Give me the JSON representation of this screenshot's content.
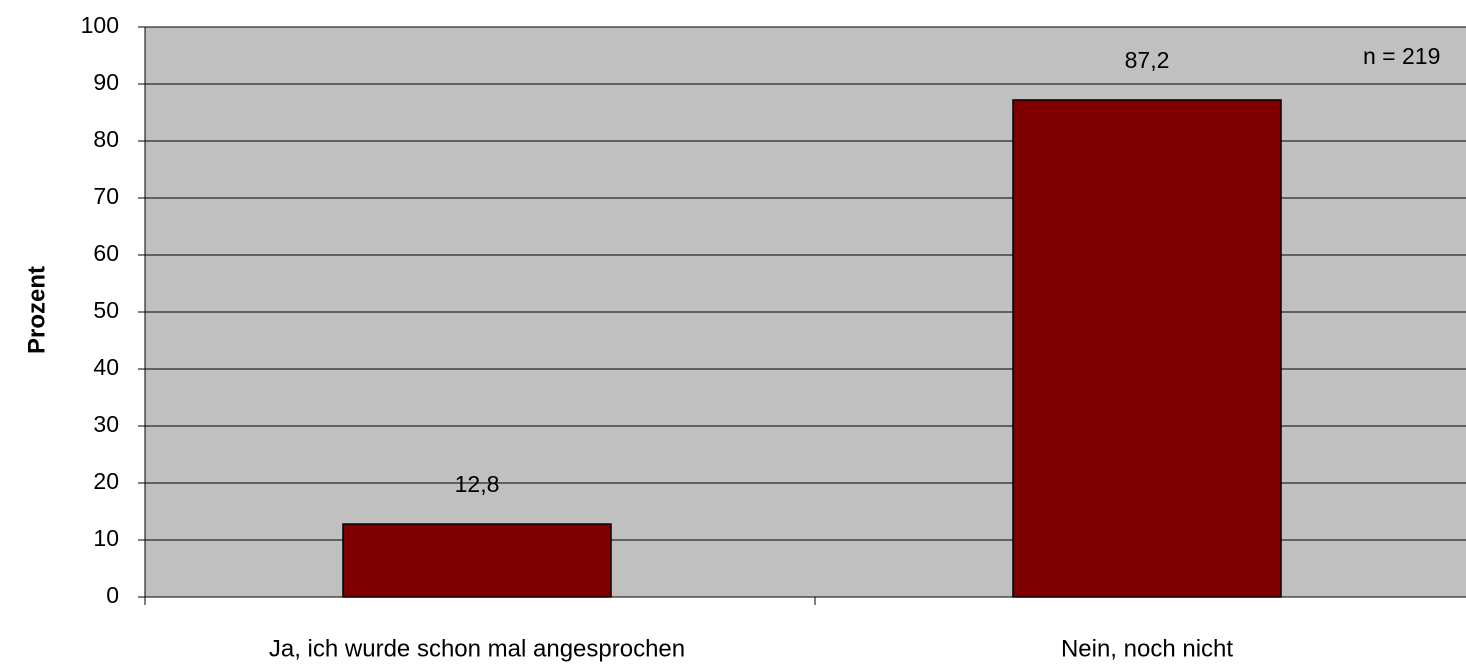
{
  "chart_data": {
    "type": "bar",
    "y_label": "Prozent",
    "annotation": "n = 219",
    "categories": [
      "Ja, ich wurde schon mal angesprochen",
      "Nein, noch nicht"
    ],
    "values": [
      12.8,
      87.2
    ],
    "value_labels": [
      "12,8",
      "87,2"
    ],
    "color": "#800000",
    "plot_background": "#c0c0c0",
    "ylim": [
      0,
      100
    ],
    "yticks": [
      0,
      10,
      20,
      30,
      40,
      50,
      60,
      70,
      80,
      90,
      100
    ],
    "grid": true
  }
}
